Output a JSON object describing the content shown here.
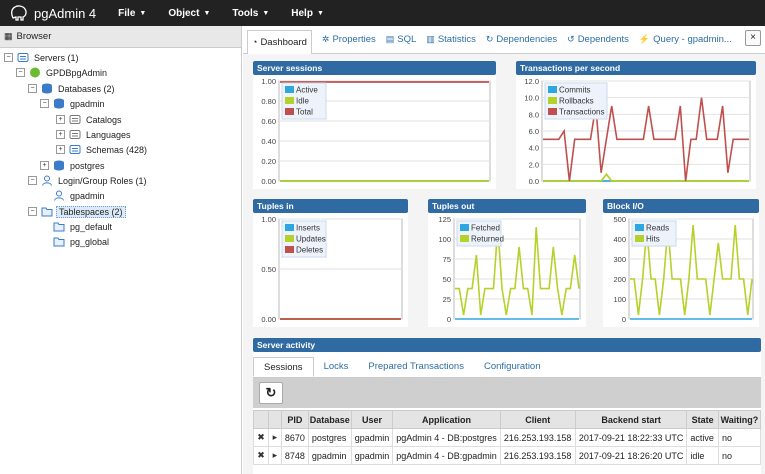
{
  "app": {
    "title": "pgAdmin 4"
  },
  "menu": [
    "File",
    "Object",
    "Tools",
    "Help"
  ],
  "browser": {
    "title": "Browser",
    "tree": [
      {
        "label": "Servers (1)",
        "toggle": "−",
        "icon": "servers"
      },
      {
        "label": "GPDBpgAdmin",
        "toggle": "−",
        "icon": "server"
      },
      {
        "label": "Databases (2)",
        "toggle": "−",
        "icon": "databases"
      },
      {
        "label": "gpadmin",
        "toggle": "−",
        "icon": "database"
      },
      {
        "label": "Catalogs",
        "toggle": "+",
        "icon": "catalogs"
      },
      {
        "label": "Languages",
        "toggle": "+",
        "icon": "languages"
      },
      {
        "label": "Schemas (428)",
        "toggle": "+",
        "icon": "schemas"
      },
      {
        "label": "postgres",
        "toggle": "+",
        "icon": "database"
      },
      {
        "label": "Login/Group Roles (1)",
        "toggle": "−",
        "icon": "roles"
      },
      {
        "label": "gpadmin",
        "toggle": "",
        "icon": "role"
      },
      {
        "label": "Tablespaces (2)",
        "toggle": "−",
        "icon": "tablespaces"
      },
      {
        "label": "pg_default",
        "toggle": "",
        "icon": "tablespace"
      },
      {
        "label": "pg_global",
        "toggle": "",
        "icon": "tablespace"
      }
    ]
  },
  "tabs": [
    {
      "label": "Dashboard",
      "icon": "dashboard-icon"
    },
    {
      "label": "Properties",
      "icon": "properties-icon"
    },
    {
      "label": "SQL",
      "icon": "sql-icon"
    },
    {
      "label": "Statistics",
      "icon": "statistics-icon"
    },
    {
      "label": "Dependencies",
      "icon": "dependencies-icon"
    },
    {
      "label": "Dependents",
      "icon": "dependents-icon"
    },
    {
      "label": "Query - gpadmin...",
      "icon": "query-icon"
    }
  ],
  "close_label": "×",
  "colors": {
    "navbar": "#222222",
    "panel_title": "#2f6aa3",
    "blue": "#2ea7e0",
    "green": "#b5d22a",
    "red": "#c0504d",
    "link": "#2c6ea5"
  },
  "chart_data": [
    {
      "type": "line",
      "title": "Server sessions",
      "ylim": [
        0,
        1
      ],
      "yticks": [
        "1.00",
        "0.80",
        "0.60",
        "0.40",
        "0.20",
        "0.00"
      ],
      "legend_position": "top-left",
      "series": [
        {
          "name": "Active",
          "color": "#2ea7e0",
          "values": [
            0,
            0,
            0,
            0,
            0,
            0,
            0,
            0,
            0,
            0,
            0,
            0,
            0,
            0,
            0,
            0,
            0,
            0,
            0,
            0
          ]
        },
        {
          "name": "Idle",
          "color": "#b5d22a",
          "values": [
            0,
            0,
            0,
            0,
            0,
            0,
            0,
            0,
            0,
            0,
            0,
            0,
            0,
            0,
            0,
            0,
            0,
            0,
            0,
            0
          ]
        },
        {
          "name": "Total",
          "color": "#c0504d",
          "values": [
            0.99,
            0.99,
            0.99,
            0.99,
            0.99,
            0.99,
            0.99,
            0.99,
            0.99,
            0.99,
            0.99,
            0.99,
            0.99,
            0.99,
            0.99,
            0.99,
            0.99,
            0.99,
            0.99,
            0.99
          ]
        }
      ]
    },
    {
      "type": "line",
      "title": "Transactions per second",
      "ylim": [
        0,
        12
      ],
      "yticks": [
        "12.0",
        "10.0",
        "8.0",
        "6.0",
        "4.0",
        "2.0",
        "0.0"
      ],
      "legend_position": "top-left",
      "series": [
        {
          "name": "Commits",
          "color": "#2ea7e0",
          "values": [
            0,
            0,
            0,
            0,
            0,
            0,
            0,
            0,
            0,
            0,
            0,
            0,
            0,
            0,
            0,
            0,
            0,
            0,
            0,
            0,
            0,
            0,
            0,
            0,
            0,
            0,
            0,
            0,
            0,
            0,
            0,
            0,
            0,
            0,
            0,
            0,
            0,
            0,
            0,
            0
          ]
        },
        {
          "name": "Rollbacks",
          "color": "#b5d22a",
          "values": [
            0,
            0,
            0,
            0,
            0,
            0,
            0,
            0,
            0,
            0,
            0,
            0,
            0.8,
            0,
            0,
            0,
            0,
            0,
            0,
            0,
            0,
            0,
            0,
            0,
            0,
            0,
            0,
            0,
            0,
            0,
            0,
            0,
            0,
            0,
            0,
            0,
            0,
            0,
            0,
            0
          ]
        },
        {
          "name": "Transactions",
          "color": "#c0504d",
          "values": [
            5,
            5,
            5,
            5,
            6,
            0,
            5,
            5,
            5,
            5,
            9,
            1,
            5,
            9,
            5,
            5,
            5,
            5,
            5,
            5,
            9,
            5,
            5,
            5,
            5,
            5,
            9,
            0,
            5,
            5,
            10,
            5,
            5,
            5,
            9,
            1,
            5,
            5,
            5,
            5
          ]
        }
      ]
    },
    {
      "type": "line",
      "title": "Tuples in",
      "ylim": [
        0,
        1
      ],
      "yticks": [
        "1.00",
        "0.50",
        "0.00"
      ],
      "legend_position": "top-left",
      "series": [
        {
          "name": "Inserts",
          "color": "#2ea7e0",
          "values": [
            0,
            0,
            0,
            0,
            0,
            0,
            0,
            0,
            0,
            0
          ]
        },
        {
          "name": "Updates",
          "color": "#b5d22a",
          "values": [
            0,
            0,
            0,
            0,
            0,
            0,
            0,
            0,
            0,
            0
          ]
        },
        {
          "name": "Deletes",
          "color": "#c0504d",
          "values": [
            0,
            0,
            0,
            0,
            0,
            0,
            0,
            0,
            0,
            0
          ]
        }
      ]
    },
    {
      "type": "line",
      "title": "Tuples out",
      "ylim": [
        0,
        125
      ],
      "yticks": [
        "125",
        "100",
        "75",
        "50",
        "25",
        "0"
      ],
      "legend_position": "top-left",
      "series": [
        {
          "name": "Fetched",
          "color": "#2ea7e0",
          "values": [
            0,
            0,
            0,
            0,
            0,
            0,
            0,
            0,
            0,
            0,
            0,
            0,
            0,
            0,
            0,
            0,
            0,
            0,
            0,
            0,
            0,
            0,
            0,
            0,
            0,
            0,
            0,
            0,
            0,
            0
          ]
        },
        {
          "name": "Returned",
          "color": "#b5d22a",
          "values": [
            38,
            38,
            5,
            38,
            38,
            80,
            5,
            38,
            38,
            38,
            115,
            38,
            5,
            38,
            38,
            90,
            38,
            38,
            5,
            115,
            38,
            38,
            38,
            90,
            38,
            5,
            38,
            38,
            80,
            38
          ]
        }
      ]
    },
    {
      "type": "line",
      "title": "Block I/O",
      "ylim": [
        0,
        500
      ],
      "yticks": [
        "500",
        "400",
        "300",
        "200",
        "100",
        "0"
      ],
      "legend_position": "top-left",
      "series": [
        {
          "name": "Reads",
          "color": "#2ea7e0",
          "values": [
            0,
            0,
            0,
            0,
            0,
            0,
            0,
            0,
            0,
            0,
            0,
            0,
            0,
            0,
            0,
            0,
            0,
            0,
            0,
            0,
            0,
            0,
            0,
            0,
            0,
            0,
            0,
            0,
            0,
            0
          ]
        },
        {
          "name": "Hits",
          "color": "#b5d22a",
          "values": [
            200,
            200,
            20,
            200,
            450,
            200,
            200,
            20,
            200,
            460,
            200,
            200,
            200,
            20,
            200,
            470,
            200,
            200,
            200,
            20,
            200,
            380,
            200,
            200,
            200,
            470,
            200,
            200,
            20,
            200
          ]
        }
      ]
    }
  ],
  "activity": {
    "title": "Server activity",
    "subtabs": [
      "Sessions",
      "Locks",
      "Prepared Transactions",
      "Configuration"
    ],
    "refresh_icon": "↻",
    "columns": [
      "",
      "",
      "PID",
      "Database",
      "User",
      "Application",
      "Client",
      "Backend start",
      "State",
      "Waiting?"
    ],
    "rows": [
      {
        "x": "✖",
        "arrow": "▸",
        "pid": "8670",
        "db": "postgres",
        "user": "gpadmin",
        "app": "pgAdmin 4 - DB:postgres",
        "client": "216.253.193.158",
        "start": "2017-09-21 18:22:33 UTC",
        "state": "active",
        "waiting": "no"
      },
      {
        "x": "✖",
        "arrow": "▸",
        "pid": "8748",
        "db": "gpadmin",
        "user": "gpadmin",
        "app": "pgAdmin 4 - DB:gpadmin",
        "client": "216.253.193.158",
        "start": "2017-09-21 18:26:20 UTC",
        "state": "idle",
        "waiting": "no"
      }
    ]
  }
}
